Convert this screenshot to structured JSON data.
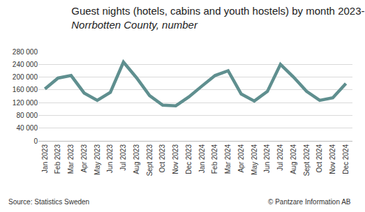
{
  "chart_data": {
    "type": "line",
    "title": "Guest nights (hotels, cabins and youth hostels) by month 2023-",
    "subtitle": "Norrbotten County, number",
    "annotations": [
      "Source: Statistics Sweden",
      "© Pantzare Information AB"
    ],
    "categories": [
      "Jan 2023",
      "Feb 2023",
      "Mar 2023",
      "Apr 2023",
      "May 2023",
      "Jun 2023",
      "Jul 2023",
      "Aug 2023",
      "Sept 2023",
      "Oct 2023",
      "Nov 2023",
      "Dec 2023",
      "Jan 2024",
      "Feb 2024",
      "Mar 2024",
      "Apr 2024",
      "May 2024",
      "Jun 2024",
      "Jul 2024",
      "Aug 2024",
      "Sept 2024",
      "Oct 2024",
      "Nov 2024",
      "Dec 2024"
    ],
    "values": [
      163000,
      197000,
      205000,
      150000,
      127000,
      152000,
      247000,
      198000,
      142000,
      112000,
      110000,
      138000,
      172000,
      205000,
      220000,
      147000,
      125000,
      155000,
      240000,
      200000,
      155000,
      127000,
      135000,
      180000
    ],
    "color": "#5f8f8f",
    "ylim": [
      0,
      280000
    ],
    "yticks": [
      0,
      {
        "value": 40000,
        "label": "40 000"
      },
      {
        "value": 80000,
        "label": "80 000"
      },
      {
        "value": 120000,
        "label": "120 000"
      },
      {
        "value": 160000,
        "label": "160 000"
      },
      {
        "value": 200000,
        "label": "200 000"
      },
      {
        "value": 240000,
        "label": "240 000"
      },
      {
        "value": 280000,
        "label": "280 000"
      }
    ],
    "grid": true
  }
}
